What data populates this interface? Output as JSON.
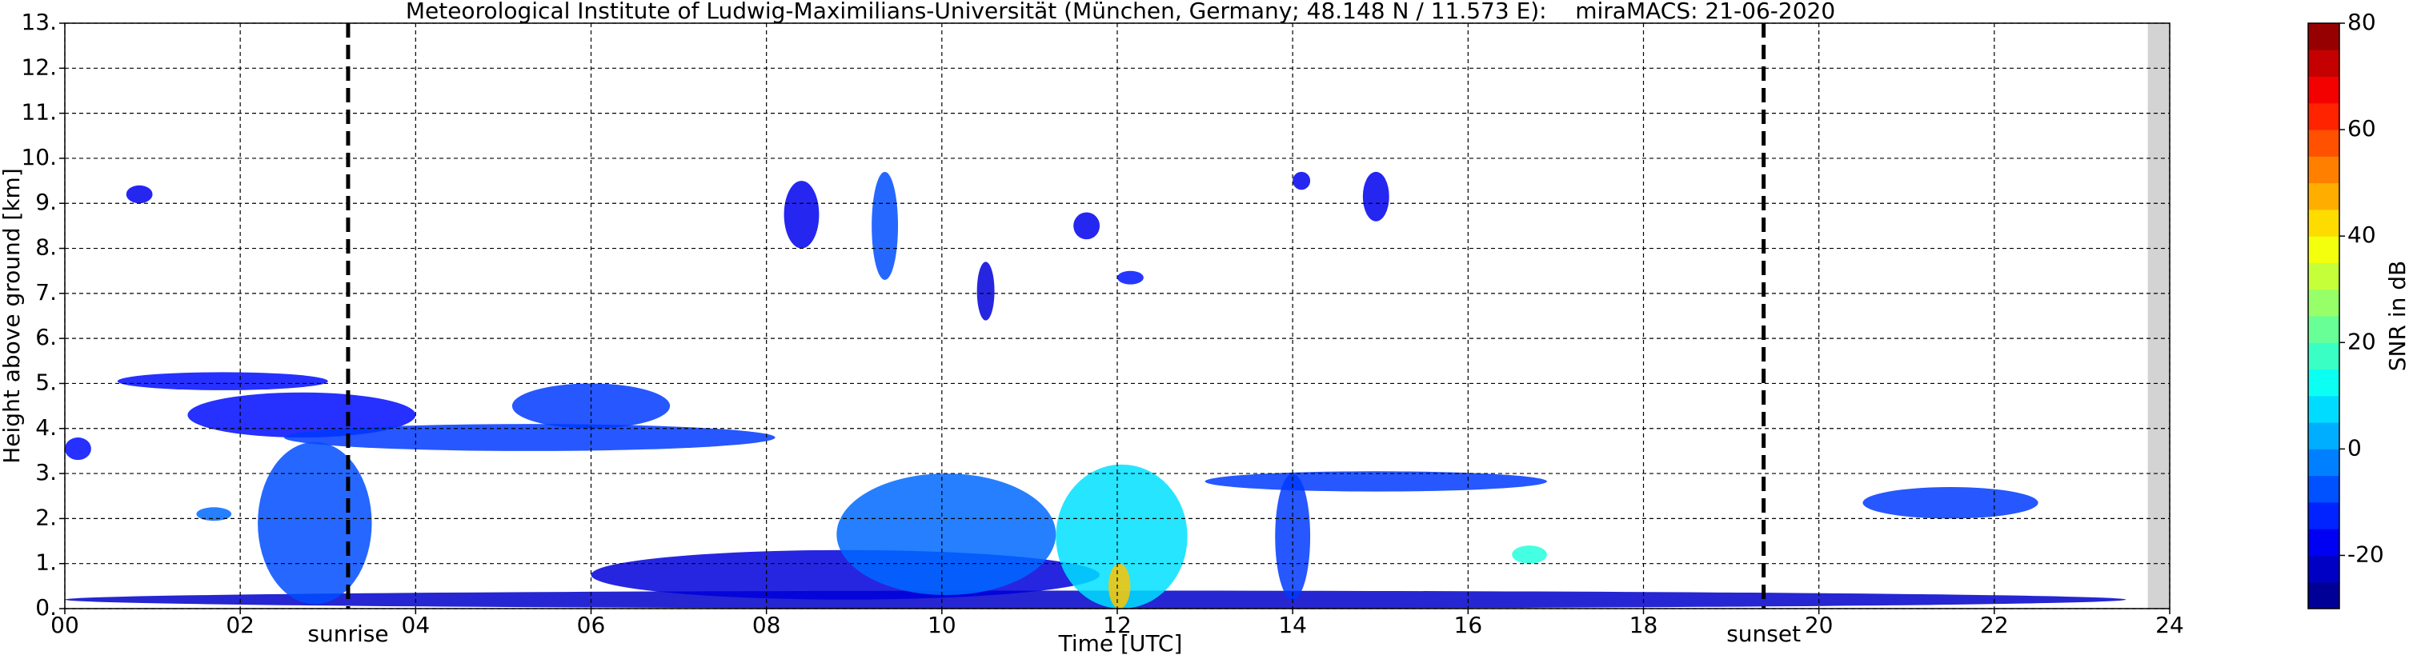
{
  "chart_data": {
    "type": "heatmap",
    "title": "Meteorological Institute of Ludwig-Maximilians-Universität (München, Germany; 48.148 N / 11.573 E):    miraMACS: 21-06-2020",
    "x_label": "Time [UTC]",
    "y_label": "Height above ground [km]",
    "xlim": [
      0,
      24
    ],
    "ylim": [
      0,
      13
    ],
    "xticks": [
      {
        "value": 0,
        "label": "00"
      },
      {
        "value": 2,
        "label": "02"
      },
      {
        "value": 4,
        "label": "04"
      },
      {
        "value": 6,
        "label": "06"
      },
      {
        "value": 8,
        "label": "08"
      },
      {
        "value": 10,
        "label": "10"
      },
      {
        "value": 12,
        "label": "12"
      },
      {
        "value": 14,
        "label": "14"
      },
      {
        "value": 16,
        "label": "16"
      },
      {
        "value": 18,
        "label": "18"
      },
      {
        "value": 20,
        "label": "20"
      },
      {
        "value": 22,
        "label": "22"
      },
      {
        "value": 24,
        "label": "24"
      }
    ],
    "yticks": [
      {
        "value": 0,
        "label": "0."
      },
      {
        "value": 1,
        "label": "1."
      },
      {
        "value": 2,
        "label": "2."
      },
      {
        "value": 3,
        "label": "3."
      },
      {
        "value": 4,
        "label": "4."
      },
      {
        "value": 5,
        "label": "5."
      },
      {
        "value": 6,
        "label": "6."
      },
      {
        "value": 7,
        "label": "7."
      },
      {
        "value": 8,
        "label": "8."
      },
      {
        "value": 9,
        "label": "9."
      },
      {
        "value": 10,
        "label": "10."
      },
      {
        "value": 11,
        "label": "11."
      },
      {
        "value": 12,
        "label": "12."
      },
      {
        "value": 13,
        "label": "13."
      }
    ],
    "grid": true,
    "no_data_range": [
      23.75,
      24
    ],
    "colorbar": {
      "label": "SNR in dB",
      "lim": [
        -30,
        80
      ],
      "ticks": [
        -20,
        0,
        20,
        40,
        60,
        80
      ],
      "colormap": "jet",
      "step": 5
    },
    "annotations": [
      {
        "label": "sunrise",
        "x": 3.23
      },
      {
        "label": "sunset",
        "x": 19.37
      }
    ],
    "echoes": [
      {
        "t": [
          0.0,
          23.5
        ],
        "h": [
          0.0,
          0.4
        ],
        "snr": -22
      },
      {
        "t": [
          6.0,
          11.8
        ],
        "h": [
          0.2,
          1.3
        ],
        "snr": -20
      },
      {
        "t": [
          0.6,
          3.0
        ],
        "h": [
          4.85,
          5.25
        ],
        "snr": -15
      },
      {
        "t": [
          1.4,
          4.0
        ],
        "h": [
          3.8,
          4.8
        ],
        "snr": -15
      },
      {
        "t": [
          2.5,
          8.1
        ],
        "h": [
          3.5,
          4.1
        ],
        "snr": -10
      },
      {
        "t": [
          5.1,
          6.9
        ],
        "h": [
          4.0,
          5.0
        ],
        "snr": -10
      },
      {
        "t": [
          2.2,
          3.5
        ],
        "h": [
          0.1,
          3.7
        ],
        "snr": -8
      },
      {
        "t": [
          0.0,
          0.3
        ],
        "h": [
          3.3,
          3.8
        ],
        "snr": -15
      },
      {
        "t": [
          1.5,
          1.9
        ],
        "h": [
          1.95,
          2.25
        ],
        "snr": -5
      },
      {
        "t": [
          0.7,
          1.0
        ],
        "h": [
          9.0,
          9.4
        ],
        "snr": -18
      },
      {
        "t": [
          8.2,
          8.6
        ],
        "h": [
          8.0,
          9.5
        ],
        "snr": -18
      },
      {
        "t": [
          9.2,
          9.5
        ],
        "h": [
          7.3,
          9.7
        ],
        "snr": -8
      },
      {
        "t": [
          10.4,
          10.6
        ],
        "h": [
          6.4,
          7.7
        ],
        "snr": -20
      },
      {
        "t": [
          11.5,
          11.8
        ],
        "h": [
          8.2,
          8.8
        ],
        "snr": -18
      },
      {
        "t": [
          12.0,
          12.3
        ],
        "h": [
          7.2,
          7.5
        ],
        "snr": -14
      },
      {
        "t": [
          14.0,
          14.2
        ],
        "h": [
          9.3,
          9.7
        ],
        "snr": -18
      },
      {
        "t": [
          14.8,
          15.1
        ],
        "h": [
          8.6,
          9.7
        ],
        "snr": -18
      },
      {
        "t": [
          8.8,
          11.3
        ],
        "h": [
          0.3,
          3.0
        ],
        "snr": -5
      },
      {
        "t": [
          11.3,
          12.8
        ],
        "h": [
          0.0,
          3.2
        ],
        "snr": 8
      },
      {
        "t": [
          11.9,
          12.15
        ],
        "h": [
          0.0,
          1.0
        ],
        "snr": 45
      },
      {
        "t": [
          13.0,
          16.9
        ],
        "h": [
          2.6,
          3.05
        ],
        "snr": -10
      },
      {
        "t": [
          13.8,
          14.2
        ],
        "h": [
          0.2,
          3.0
        ],
        "snr": -10
      },
      {
        "t": [
          16.5,
          16.9
        ],
        "h": [
          1.0,
          1.4
        ],
        "snr": 15
      },
      {
        "t": [
          20.5,
          22.5
        ],
        "h": [
          2.0,
          2.7
        ],
        "snr": -10
      }
    ]
  }
}
